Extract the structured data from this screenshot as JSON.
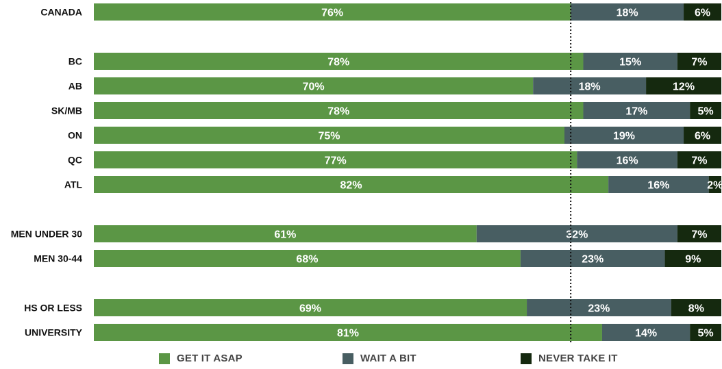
{
  "chart_data": {
    "type": "bar",
    "orientation": "horizontal",
    "stacked": true,
    "value_format": "percent",
    "categories": [
      "CANADA",
      "BC",
      "AB",
      "SK/MB",
      "ON",
      "QC",
      "ATL",
      "MEN UNDER 30",
      "MEN 30-44",
      "HS OR LESS",
      "UNIVERSITY"
    ],
    "groups": [
      [
        "CANADA"
      ],
      [
        "BC",
        "AB",
        "SK/MB",
        "ON",
        "QC",
        "ATL"
      ],
      [
        "MEN UNDER 30",
        "MEN 30-44"
      ],
      [
        "HS OR LESS",
        "UNIVERSITY"
      ]
    ],
    "series": [
      {
        "name": "GET IT ASAP",
        "color": "#5b9645",
        "values": [
          76,
          78,
          70,
          78,
          75,
          77,
          82,
          61,
          68,
          69,
          81
        ]
      },
      {
        "name": "WAIT A BIT",
        "color": "#485e62",
        "values": [
          18,
          15,
          18,
          17,
          19,
          16,
          16,
          32,
          23,
          23,
          14
        ]
      },
      {
        "name": "NEVER TAKE IT",
        "color": "#15290f",
        "values": [
          6,
          7,
          12,
          5,
          6,
          7,
          2,
          7,
          9,
          8,
          5
        ]
      }
    ],
    "reference_line": {
      "value": 76,
      "style": "dotted",
      "color": "#111111"
    },
    "xlim": [
      0,
      100
    ],
    "legend_position": "bottom",
    "grid": false,
    "title": "",
    "xlabel": "",
    "ylabel": ""
  }
}
